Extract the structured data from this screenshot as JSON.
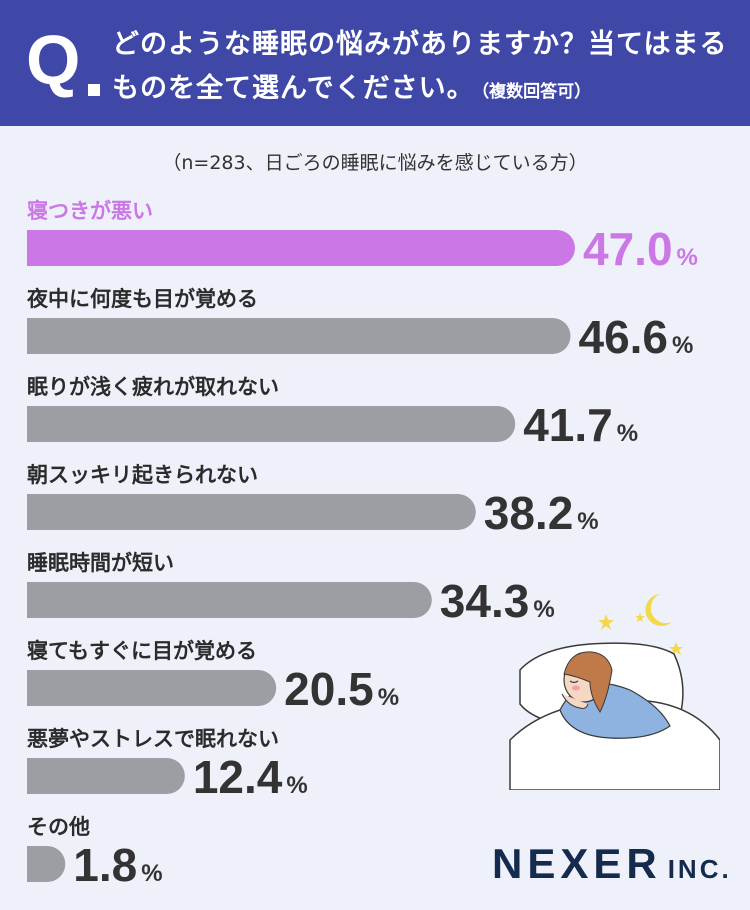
{
  "header": {
    "q_mark": "Q",
    "question_line1": "どのような睡眠の悩みがありますか？当てはまる",
    "question_line2": "ものを全て選んでください。",
    "question_note": "（複数回答可）"
  },
  "sample_note": "（n=283、日ごろの睡眠に悩みを感じている方）",
  "brand": {
    "main": "NEXER",
    "suffix": "INC."
  },
  "colors": {
    "header_bg": "#3f48a7",
    "highlight": "#cc77e6",
    "bar": "#9d9ea3",
    "value_text": "#333333",
    "background": "#eef0fa"
  },
  "chart_data": {
    "type": "bar",
    "orientation": "horizontal",
    "unit": "%",
    "categories": [
      "寝つきが悪い",
      "夜中に何度も目が覚める",
      "眠りが浅く疲れが取れない",
      "朝スッキリ起きられない",
      "睡眠時間が短い",
      "寝てもすぐに目が覚める",
      "悪夢やストレスで眠れない",
      "その他"
    ],
    "values": [
      47.0,
      46.6,
      41.7,
      38.2,
      34.3,
      20.5,
      12.4,
      1.8
    ],
    "value_labels": [
      "47.0",
      "46.6",
      "41.7",
      "38.2",
      "34.3",
      "20.5",
      "12.4",
      "1.8"
    ],
    "highlight_index": 0,
    "grid": false
  }
}
